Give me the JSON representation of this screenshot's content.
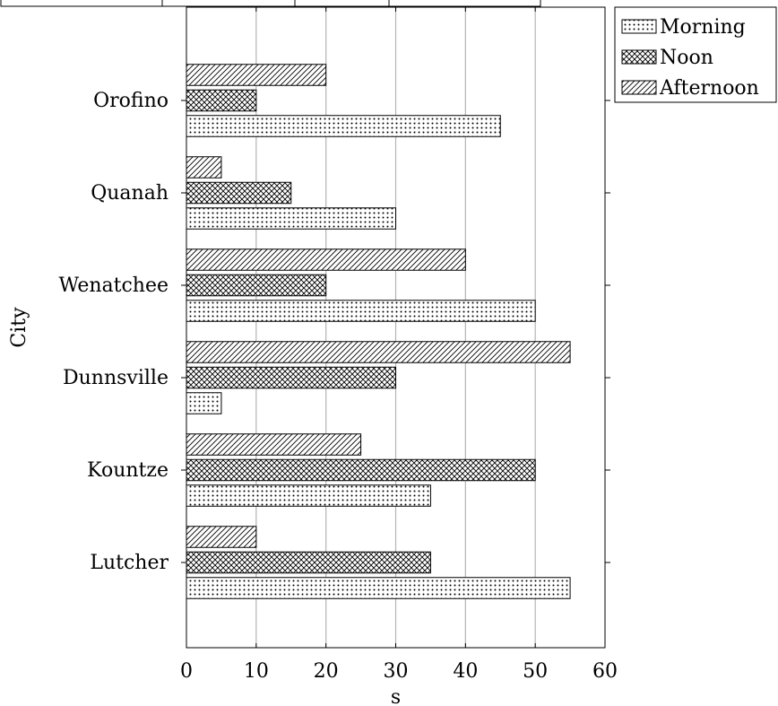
{
  "chart_data": {
    "type": "bar",
    "orientation": "horizontal",
    "title": "",
    "xlabel": "s",
    "ylabel": "City",
    "xlim": [
      0,
      60
    ],
    "xticks": [
      0,
      10,
      20,
      30,
      40,
      50,
      60
    ],
    "grid": "vertical",
    "legend_position": "outside-top-right",
    "categories": [
      "Orofino",
      "Quanah",
      "Wenatchee",
      "Dunnsville",
      "Kountze",
      "Lutcher"
    ],
    "series": [
      {
        "name": "Morning",
        "pattern": "dots",
        "values": [
          45,
          30,
          50,
          5,
          35,
          55
        ]
      },
      {
        "name": "Noon",
        "pattern": "crosshatch",
        "values": [
          10,
          15,
          20,
          30,
          50,
          35
        ]
      },
      {
        "name": "Afternoon",
        "pattern": "diagonal",
        "values": [
          20,
          5,
          40,
          55,
          25,
          10
        ]
      }
    ],
    "colors": {
      "stroke": "#000000",
      "grid": "#b3b3b3",
      "fill": "#ffffff"
    }
  }
}
